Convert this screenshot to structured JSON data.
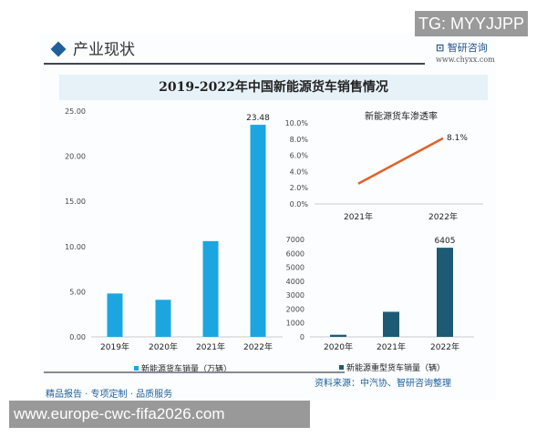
{
  "watermarks": {
    "top": "TG: MYYJJPP",
    "bottom": "www.europe-cwc-fifa2026.com"
  },
  "header": {
    "section": "产业现状",
    "logo_text": "智研咨询",
    "logo_url": "www.chyxx.com"
  },
  "source": "资料来源：中汽协、智研咨询整理",
  "footer": "精品报告 · 专项定制 · 品质服务",
  "chart_data": [
    {
      "type": "bar",
      "title": "2019-2022年中国新能源货车销售情况",
      "categories": [
        "2019年",
        "2020年",
        "2021年",
        "2022年"
      ],
      "series": [
        {
          "name": "新能源货车销量（万辆）",
          "values": [
            4.8,
            4.1,
            10.6,
            23.48
          ],
          "color": "#1ba6e0"
        }
      ],
      "data_labels": {
        "3": "23.48"
      },
      "yticks": [
        "0.00",
        "5.00",
        "10.00",
        "15.00",
        "20.00",
        "25.00"
      ],
      "ylim": [
        0,
        25
      ],
      "legend": "bottom"
    },
    {
      "type": "line",
      "title": "新能源货车渗透率",
      "categories": [
        "2021年",
        "2022年"
      ],
      "values": [
        2.5,
        8.1
      ],
      "data_labels": {
        "1": "8.1%"
      },
      "yticks": [
        "0.0%",
        "2.0%",
        "4.0%",
        "6.0%",
        "8.0%",
        "10.0%"
      ],
      "ylim": [
        0,
        10
      ],
      "color": "#e0622c"
    },
    {
      "type": "bar",
      "categories": [
        "2020年",
        "2021年",
        "2022年"
      ],
      "series": [
        {
          "name": "新能源重型货车销量（辆）",
          "values": [
            150,
            1800,
            6405
          ],
          "color": "#1d5b74"
        }
      ],
      "data_labels": {
        "2": "6405"
      },
      "yticks": [
        "0",
        "1000",
        "2000",
        "3000",
        "4000",
        "5000",
        "6000",
        "7000"
      ],
      "ylim": [
        0,
        7000
      ],
      "legend": "bottom"
    }
  ]
}
